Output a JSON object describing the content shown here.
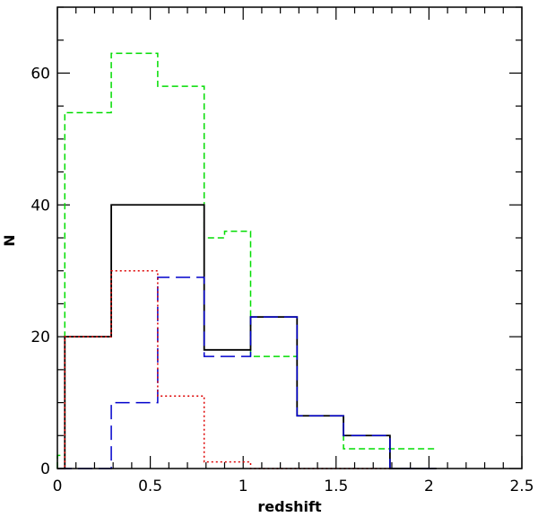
{
  "chart_data": {
    "type": "histogram",
    "title": "",
    "xlabel": "redshift",
    "ylabel": "N",
    "xlim": [
      0,
      2.5
    ],
    "ylim": [
      0,
      70
    ],
    "xticks": [
      0,
      0.5,
      1,
      1.5,
      2,
      2.5
    ],
    "xtick_labels": [
      "0",
      "0.5",
      "1",
      "1.5",
      "2",
      "2.5"
    ],
    "yticks": [
      0,
      20,
      40,
      60
    ],
    "ytick_labels": [
      "0",
      "20",
      "40",
      "60"
    ],
    "grid": false,
    "legend": "none",
    "bin_edges": [
      0,
      0.04,
      0.29,
      0.54,
      0.79,
      1.04,
      1.29,
      1.54,
      1.79,
      2.04
    ],
    "series": [
      {
        "color": "#00dd00",
        "linestyle": "short-dash",
        "values": [
          2,
          54,
          63,
          58,
          35,
          36,
          17,
          8,
          3,
          3
        ],
        "step_edges": [
          0,
          0.04,
          0.29,
          0.54,
          0.79,
          0.9,
          1.04,
          1.29,
          1.54,
          1.79,
          2.04
        ]
      },
      {
        "color": "#000000",
        "linestyle": "solid",
        "values": [
          0,
          20,
          40,
          18,
          23,
          8,
          5,
          0,
          0
        ],
        "step_edges": [
          0,
          0.04,
          0.29,
          0.79,
          1.04,
          1.29,
          1.54,
          1.79,
          2.04,
          2.04
        ]
      },
      {
        "color": "#0000cc",
        "linestyle": "long-dash",
        "values": [
          0,
          0,
          10,
          29,
          17,
          23,
          8,
          5,
          0
        ],
        "step_edges": [
          0,
          0.04,
          0.29,
          0.54,
          0.79,
          1.04,
          1.29,
          1.54,
          1.79,
          2.04
        ]
      },
      {
        "color": "#dd0000",
        "linestyle": "dotted",
        "values": [
          0,
          20,
          30,
          11,
          1,
          0,
          0,
          0
        ],
        "step_edges": [
          0,
          0.04,
          0.29,
          0.54,
          0.79,
          1.04,
          1.29,
          1.54,
          1.79
        ]
      }
    ]
  }
}
